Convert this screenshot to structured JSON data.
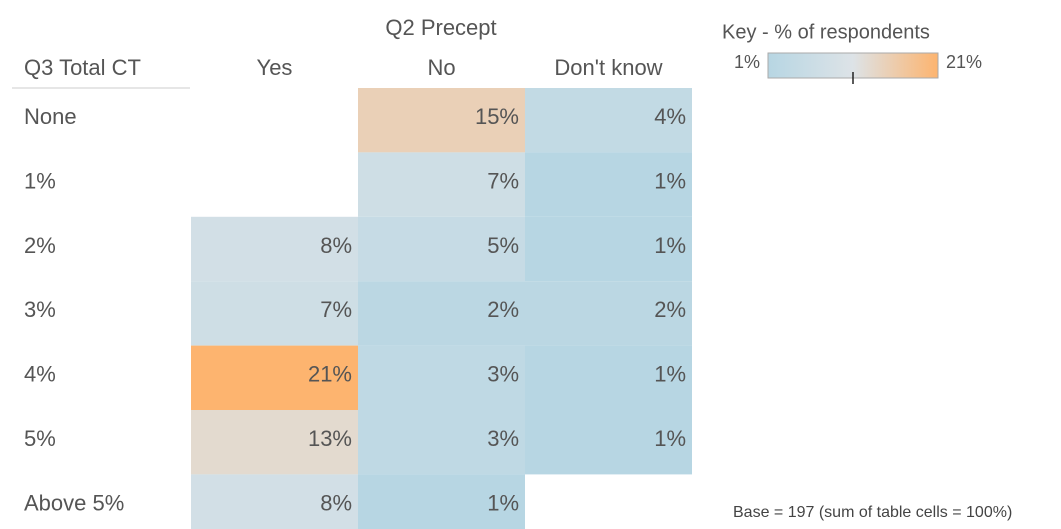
{
  "chart_data": {
    "type": "heatmap",
    "title": "Q2 Precept",
    "y_label": "Q3 Total CT",
    "categories": [
      "Yes",
      "No",
      "Don't know"
    ],
    "rows": [
      "None",
      "1%",
      "2%",
      "3%",
      "4%",
      "5%",
      "Above 5%"
    ],
    "values": [
      [
        null,
        15,
        4
      ],
      [
        null,
        7,
        1
      ],
      [
        8,
        5,
        1
      ],
      [
        7,
        2,
        2
      ],
      [
        21,
        3,
        1
      ],
      [
        13,
        3,
        1
      ],
      [
        8,
        1,
        null
      ]
    ],
    "value_labels": [
      [
        null,
        "15%",
        "4%"
      ],
      [
        null,
        "7%",
        "1%"
      ],
      [
        "8%",
        "5%",
        "1%"
      ],
      [
        "7%",
        "2%",
        "2%"
      ],
      [
        "21%",
        "3%",
        "1%"
      ],
      [
        "13%",
        "3%",
        "1%"
      ],
      [
        "8%",
        "1%",
        null
      ]
    ],
    "legend": {
      "title": "Key - % of respondents",
      "range": [
        1,
        21
      ],
      "range_labels": [
        "1%",
        "21%"
      ],
      "ticks": [
        11
      ],
      "colors": [
        "#b7d6e3",
        "#dde3e7",
        "#fdb46f"
      ]
    },
    "note": "Base = 197 (sum of table cells = 100%)"
  }
}
